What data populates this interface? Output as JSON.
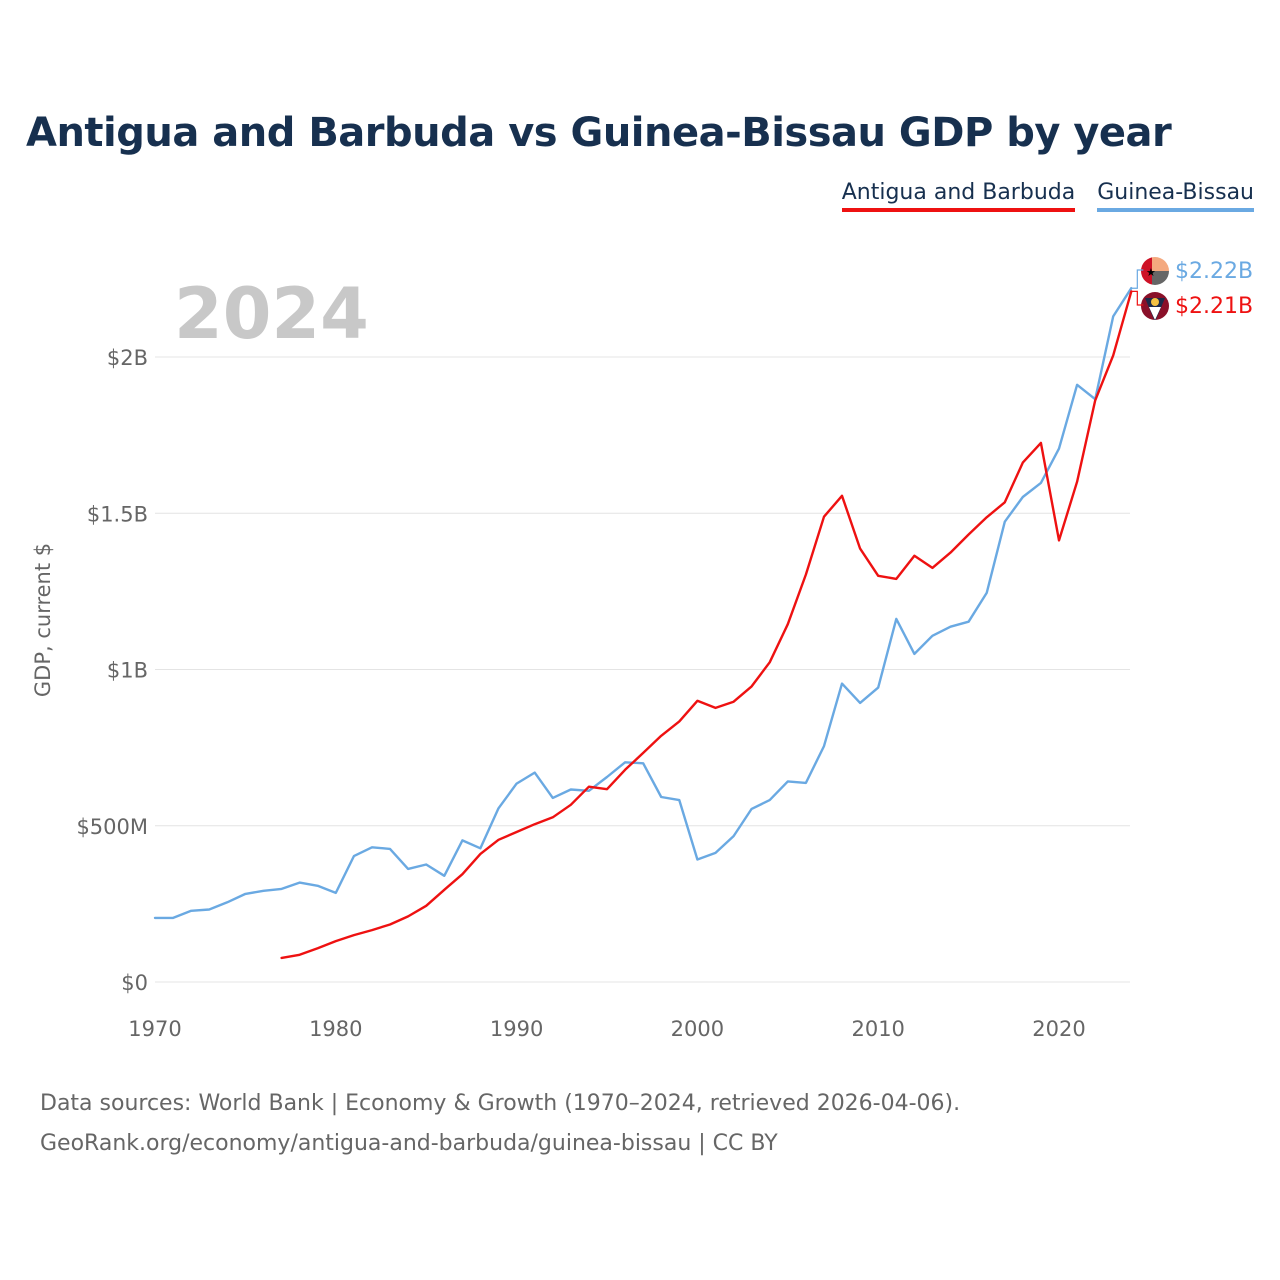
{
  "title": "Antigua and Barbuda vs Guinea-Bissau GDP by year",
  "legend": [
    {
      "name": "Antigua and Barbuda",
      "color": "#ee1111"
    },
    {
      "name": "Guinea-Bissau",
      "color": "#6aa9e2"
    }
  ],
  "footer": {
    "line1": "Data sources: World Bank | Economy & Growth (1970–2024, retrieved 2026-04-06).",
    "line2": "GeoRank.org/economy/antigua-and-barbuda/guinea-bissau | CC BY"
  },
  "chart_data": {
    "type": "line",
    "title": "Antigua and Barbuda vs Guinea-Bissau GDP by year",
    "ylabel": "GDP, current $",
    "xlabel": "",
    "year_label": "2024",
    "xlim": [
      1970,
      2024
    ],
    "ylim": [
      0,
      2.3
    ],
    "x_ticks": [
      1970,
      1980,
      1990,
      2000,
      2010,
      2020
    ],
    "y_ticks": [
      {
        "value": 0,
        "label": "$0"
      },
      {
        "value": 0.5,
        "label": "$500M"
      },
      {
        "value": 1,
        "label": "$1B"
      },
      {
        "value": 1.5,
        "label": "$1.5B"
      },
      {
        "value": 2,
        "label": "$2B"
      }
    ],
    "units": "billions USD",
    "series": [
      {
        "name": "Antigua and Barbuda",
        "color": "#ee1111",
        "end_label": "$2.21B",
        "x": [
          1977,
          1978,
          1979,
          1980,
          1981,
          1982,
          1983,
          1984,
          1985,
          1986,
          1987,
          1988,
          1989,
          1990,
          1991,
          1992,
          1993,
          1994,
          1995,
          1996,
          1997,
          1998,
          1999,
          2000,
          2001,
          2002,
          2003,
          2004,
          2005,
          2006,
          2007,
          2008,
          2009,
          2010,
          2011,
          2012,
          2013,
          2014,
          2015,
          2016,
          2017,
          2018,
          2019,
          2020,
          2021,
          2022,
          2023,
          2024
        ],
        "values": [
          0.077,
          0.087,
          0.108,
          0.131,
          0.15,
          0.166,
          0.184,
          0.21,
          0.244,
          0.295,
          0.345,
          0.41,
          0.455,
          0.48,
          0.505,
          0.527,
          0.567,
          0.625,
          0.617,
          0.679,
          0.733,
          0.788,
          0.834,
          0.9,
          0.877,
          0.897,
          0.946,
          1.023,
          1.145,
          1.304,
          1.489,
          1.556,
          1.387,
          1.3,
          1.29,
          1.364,
          1.325,
          1.374,
          1.432,
          1.487,
          1.535,
          1.662,
          1.725,
          1.413,
          1.601,
          1.861,
          2.005,
          2.21
        ]
      },
      {
        "name": "Guinea-Bissau",
        "color": "#6aa9e2",
        "end_label": "$2.22B",
        "x": [
          1970,
          1971,
          1972,
          1973,
          1974,
          1975,
          1976,
          1977,
          1978,
          1979,
          1980,
          1981,
          1982,
          1983,
          1984,
          1985,
          1986,
          1987,
          1988,
          1989,
          1990,
          1991,
          1992,
          1993,
          1994,
          1995,
          1996,
          1997,
          1998,
          1999,
          2000,
          2001,
          2002,
          2003,
          2004,
          2005,
          2006,
          2007,
          2008,
          2009,
          2010,
          2011,
          2012,
          2013,
          2014,
          2015,
          2016,
          2017,
          2018,
          2019,
          2020,
          2021,
          2022,
          2023,
          2024
        ],
        "values": [
          0.205,
          0.205,
          0.228,
          0.232,
          0.255,
          0.282,
          0.292,
          0.298,
          0.318,
          0.308,
          0.285,
          0.403,
          0.431,
          0.426,
          0.362,
          0.376,
          0.34,
          0.453,
          0.428,
          0.556,
          0.635,
          0.67,
          0.589,
          0.616,
          0.612,
          0.656,
          0.703,
          0.7,
          0.592,
          0.582,
          0.392,
          0.413,
          0.467,
          0.554,
          0.582,
          0.642,
          0.637,
          0.755,
          0.955,
          0.893,
          0.942,
          1.162,
          1.05,
          1.108,
          1.137,
          1.153,
          1.245,
          1.473,
          1.552,
          1.597,
          1.707,
          1.911,
          1.865,
          2.13,
          2.22
        ]
      }
    ]
  }
}
